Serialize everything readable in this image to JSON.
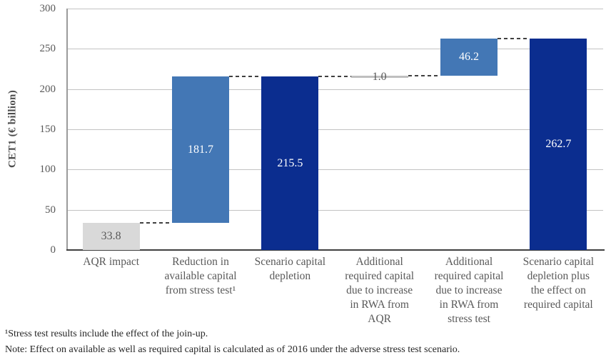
{
  "chart_data": {
    "type": "bar",
    "subtype": "waterfall",
    "title": "",
    "xlabel": "",
    "ylabel": "CET1 (€ billion)",
    "ylim": [
      0,
      300
    ],
    "yticks": [
      0,
      50,
      100,
      150,
      200,
      250,
      300
    ],
    "grid": true,
    "legend": null,
    "categories": [
      "AQR impact",
      "Reduction in\navailable capital\nfrom stress test¹",
      "Scenario capital\ndepletion",
      "Additional\nrequired capital\ndue to increase\nin RWA from\nAQR",
      "Additional\nrequired capital\ndue to increase\nin RWA from\nstress test",
      "Scenario capital\ndepletion plus\nthe effect on\nrequired capital"
    ],
    "bars": [
      {
        "category": "AQR impact",
        "value": 33.8,
        "start": 0,
        "end": 33.8,
        "style": "light_gray",
        "value_label": "33.8",
        "value_label_style": "gray_text"
      },
      {
        "category": "Reduction in available capital from stress test¹",
        "value": 181.7,
        "start": 33.8,
        "end": 215.5,
        "style": "medium_blue",
        "value_label": "181.7",
        "value_label_style": "white_text"
      },
      {
        "category": "Scenario capital depletion",
        "value": 215.5,
        "start": 0,
        "end": 215.5,
        "style": "dark_blue",
        "value_label": "215.5",
        "value_label_style": "white_text"
      },
      {
        "category": "Additional required capital due to increase in RWA from AQR",
        "value": 1.0,
        "start": 215.5,
        "end": 216.5,
        "style": "thin_gray",
        "value_label": "1.0",
        "value_label_style": "gray_text"
      },
      {
        "category": "Additional required capital due to increase in RWA from stress test",
        "value": 46.2,
        "start": 216.5,
        "end": 262.7,
        "style": "medium_blue",
        "value_label": "46.2",
        "value_label_style": "white_text"
      },
      {
        "category": "Scenario capital depletion plus the effect on required capital",
        "value": 262.7,
        "start": 0,
        "end": 262.7,
        "style": "dark_blue",
        "value_label": "262.7",
        "value_label_style": "white_text"
      }
    ],
    "connectors": [
      {
        "from": 0,
        "to": 1,
        "level": 33.8
      },
      {
        "from": 1,
        "to": 2,
        "level": 215.5
      },
      {
        "from": 2,
        "to": 3,
        "level": 215.5
      },
      {
        "from": 3,
        "to": 4,
        "level": 216.5
      },
      {
        "from": 4,
        "to": 5,
        "level": 262.7
      }
    ],
    "colors": {
      "light_gray": "#D9D9D9",
      "thin_gray": "#BFBFBF",
      "medium_blue": "#4377B5",
      "dark_blue": "#0B2D8F",
      "gridline": "#C3C3C3",
      "axis_line": "#9B9B9B",
      "baseline": "#404040",
      "connector": "#404040",
      "tick_text": "#595959",
      "white_text": "#FFFFFF",
      "gray_text": "#595959"
    }
  },
  "footnotes": {
    "footnote1": "¹Stress test results include the effect of the join-up.",
    "note": "Note: Effect on available as well as required capital is calculated as of 2016 under the adverse stress test scenario."
  }
}
